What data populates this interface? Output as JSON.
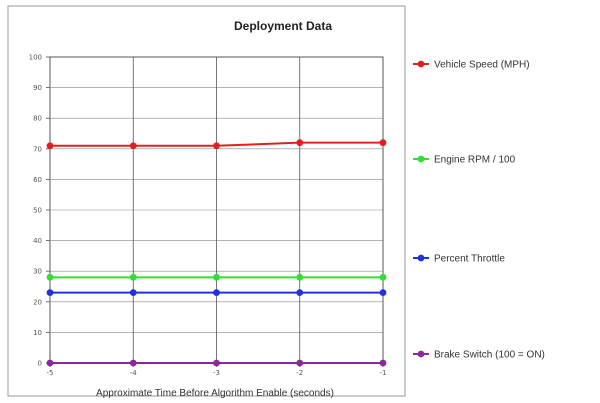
{
  "chart_data": {
    "type": "line",
    "title": "Deployment Data",
    "xlabel": "Approximate Time Before Algorithm Enable (seconds)",
    "ylabel": "",
    "x": [
      -5,
      -4,
      -3,
      -2,
      -1
    ],
    "x_tick_labels": [
      "-5",
      "-4",
      "-3",
      "-2",
      "-1"
    ],
    "ylim": [
      0,
      100
    ],
    "y_ticks": [
      0,
      10,
      20,
      30,
      40,
      50,
      60,
      70,
      80,
      90,
      100
    ],
    "grid": true,
    "legend_position": "right",
    "series": [
      {
        "name": "Vehicle Speed (MPH)",
        "color": "#e02020",
        "values": [
          71,
          71,
          71,
          72,
          72
        ]
      },
      {
        "name": "Engine RPM / 100",
        "color": "#33dd33",
        "values": [
          28,
          28,
          28,
          28,
          28
        ]
      },
      {
        "name": "Percent Throttle",
        "color": "#2233dd",
        "values": [
          23,
          23,
          23,
          23,
          23
        ]
      },
      {
        "name": "Brake Switch (100 = ON)",
        "color": "#8a2a9a",
        "values": [
          0,
          0,
          0,
          0,
          0
        ]
      }
    ]
  }
}
